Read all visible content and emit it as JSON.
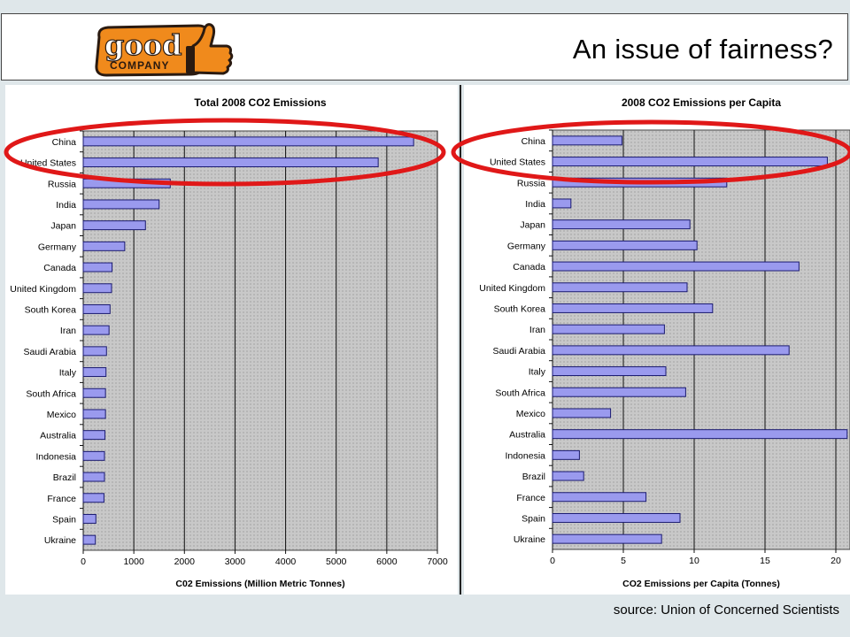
{
  "header": {
    "title": "An issue of fairness?",
    "logo": {
      "word_top": "good",
      "word_bottom": "COMPANY",
      "icon": "thumbs-up-icon",
      "brand_color": "#f08a1c",
      "outline_color": "#2a1a10"
    }
  },
  "footer": {
    "source_text": "source:  Union of Concerned Scientists"
  },
  "colors": {
    "bar_fill": "#9a9aee",
    "bar_stroke": "#1a1a70",
    "plot_bg": "#c8c8c8",
    "highlight_ellipse": "#e01818"
  },
  "chart_data": [
    {
      "type": "bar",
      "orientation": "horizontal",
      "title": "Total 2008 CO2 Emissions",
      "xlabel": "C02 Emissions (Million Metric Tonnes)",
      "categories": [
        "China",
        "United States",
        "Russia",
        "India",
        "Japan",
        "Germany",
        "Canada",
        "United Kingdom",
        "South Korea",
        "Iran",
        "Saudi Arabia",
        "Italy",
        "South Africa",
        "Mexico",
        "Australia",
        "Indonesia",
        "Brazil",
        "France",
        "Spain",
        "Ukraine"
      ],
      "values": [
        6530,
        5830,
        1720,
        1500,
        1230,
        820,
        570,
        560,
        530,
        510,
        460,
        450,
        440,
        440,
        430,
        420,
        420,
        410,
        250,
        240
      ],
      "xlim": [
        0,
        7000
      ],
      "xticks": [
        "0",
        "1000",
        "2000",
        "3000",
        "4000",
        "5000",
        "6000",
        "7000"
      ],
      "grid": true,
      "highlighted": [
        "China",
        "United States"
      ]
    },
    {
      "type": "bar",
      "orientation": "horizontal",
      "title": "2008 CO2 Emissions per Capita",
      "xlabel": "CO2 Emissions per Capita (Tonnes)",
      "categories": [
        "China",
        "United States",
        "Russia",
        "India",
        "Japan",
        "Germany",
        "Canada",
        "United Kingdom",
        "South Korea",
        "Iran",
        "Saudi Arabia",
        "Italy",
        "South Africa",
        "Mexico",
        "Australia",
        "Indonesia",
        "Brazil",
        "France",
        "Spain",
        "Ukraine"
      ],
      "values": [
        4.9,
        19.4,
        12.3,
        1.3,
        9.7,
        10.2,
        17.4,
        9.5,
        11.3,
        7.9,
        16.7,
        8.0,
        9.4,
        4.1,
        20.8,
        1.9,
        2.2,
        6.6,
        9.0,
        7.7
      ],
      "xlim": [
        0,
        21
      ],
      "xticks": [
        "0",
        "5",
        "10",
        "15",
        "20"
      ],
      "grid": true,
      "highlighted": [
        "China",
        "United States"
      ]
    }
  ]
}
